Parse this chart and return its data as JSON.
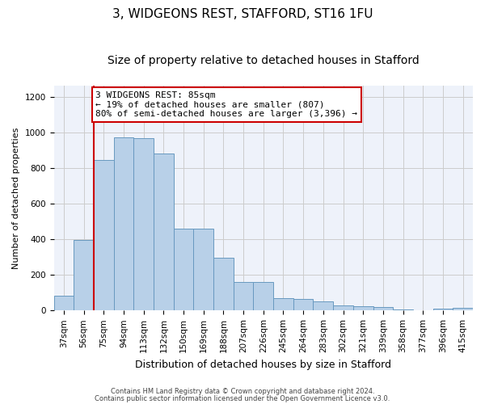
{
  "title": "3, WIDGEONS REST, STAFFORD, ST16 1FU",
  "subtitle": "Size of property relative to detached houses in Stafford",
  "xlabel": "Distribution of detached houses by size in Stafford",
  "ylabel": "Number of detached properties",
  "footnote1": "Contains HM Land Registry data © Crown copyright and database right 2024.",
  "footnote2": "Contains public sector information licensed under the Open Government Licence v3.0.",
  "categories": [
    "37sqm",
    "56sqm",
    "75sqm",
    "94sqm",
    "113sqm",
    "132sqm",
    "150sqm",
    "169sqm",
    "188sqm",
    "207sqm",
    "226sqm",
    "245sqm",
    "264sqm",
    "283sqm",
    "302sqm",
    "321sqm",
    "339sqm",
    "358sqm",
    "377sqm",
    "396sqm",
    "415sqm"
  ],
  "values": [
    85,
    395,
    845,
    970,
    965,
    880,
    460,
    460,
    295,
    160,
    160,
    70,
    65,
    50,
    30,
    25,
    18,
    5,
    0,
    10,
    15
  ],
  "bar_color": "#b8d0e8",
  "bar_edge_color": "#6899c0",
  "annotation_line1": "3 WIDGEONS REST: 85sqm",
  "annotation_line2": "← 19% of detached houses are smaller (807)",
  "annotation_line3": "80% of semi-detached houses are larger (3,396) →",
  "vline_bar_index": 2,
  "annotation_box_edge": "#cc0000",
  "vline_color": "#cc0000",
  "ylim": [
    0,
    1260
  ],
  "grid_color": "#cccccc",
  "bg_color": "#eef2fa",
  "title_fontsize": 11,
  "subtitle_fontsize": 10,
  "xlabel_fontsize": 9,
  "ylabel_fontsize": 8,
  "tick_fontsize": 7.5,
  "annot_fontsize": 8
}
